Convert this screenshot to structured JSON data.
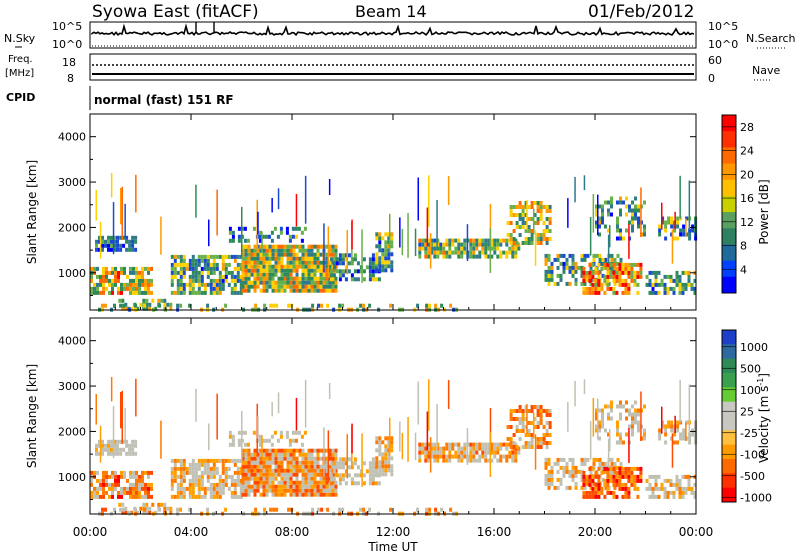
{
  "header": {
    "station": "Syowa East (fitACF)",
    "beam": "Beam 14",
    "date": "01/Feb/2012"
  },
  "aux_panels": {
    "nsky_label": "N.Sky",
    "nsky_ticks": [
      "10^5",
      "10^0"
    ],
    "nsearch_label": "N.Search",
    "nsearch_ticks": [
      "10^5",
      "10^0"
    ],
    "freq_label_1": "Freq.",
    "freq_label_2": "[MHz]",
    "freq_ticks": [
      "18",
      "8"
    ],
    "nave_label": "Nave",
    "nave_ticks": [
      "60",
      "0"
    ],
    "cpid_label": "CPID",
    "cpid_text": "normal (fast) 151 RF"
  },
  "chart_data": [
    {
      "type": "heatmap",
      "name": "power-panel",
      "ylabel": "Slant Range [km]",
      "ylim": [
        180,
        4500
      ],
      "yticks": [
        1000,
        2000,
        3000,
        4000
      ],
      "xlabel": "",
      "xlim_hours": [
        0,
        24
      ],
      "colorbar": {
        "label": "Power [dB]",
        "range": [
          0,
          30
        ],
        "ticks": [
          "28",
          "24",
          "20",
          "16",
          "12",
          "8",
          "4"
        ],
        "tick_values": [
          28,
          24,
          20,
          16,
          12,
          8,
          4
        ]
      }
    },
    {
      "type": "heatmap",
      "name": "velocity-panel",
      "ylabel": "Slant Range [km]",
      "ylim": [
        180,
        4500
      ],
      "yticks": [
        1000,
        2000,
        3000,
        4000
      ],
      "xlabel": "Time UT",
      "xlim_hours": [
        0,
        24
      ],
      "xticks": [
        "00:00",
        "04:00",
        "08:00",
        "12:00",
        "16:00",
        "20:00",
        "00:00"
      ],
      "xtick_hours": [
        0,
        4,
        8,
        12,
        16,
        20,
        24
      ],
      "colorbar": {
        "label": "Velocity [m s",
        "label_sup": "-1",
        "label_end": "]",
        "ticks": [
          "1000",
          "500",
          "100",
          "25",
          "-25",
          "-100",
          "-500",
          "-1000"
        ]
      }
    }
  ],
  "colors": {
    "power_scale": [
      "#0000ff",
      "#1a5ad2",
      "#2e8b57",
      "#4a9a6a",
      "#ffcc00",
      "#ff8c00",
      "#ff4500",
      "#ff0000"
    ],
    "velocity_scale": [
      "#2040c0",
      "#2e8b57",
      "#66cc33",
      "#c0c0b0",
      "#ffa500",
      "#ff7f00",
      "#ff0000"
    ],
    "ground_scatter": "#b0b0a8"
  }
}
